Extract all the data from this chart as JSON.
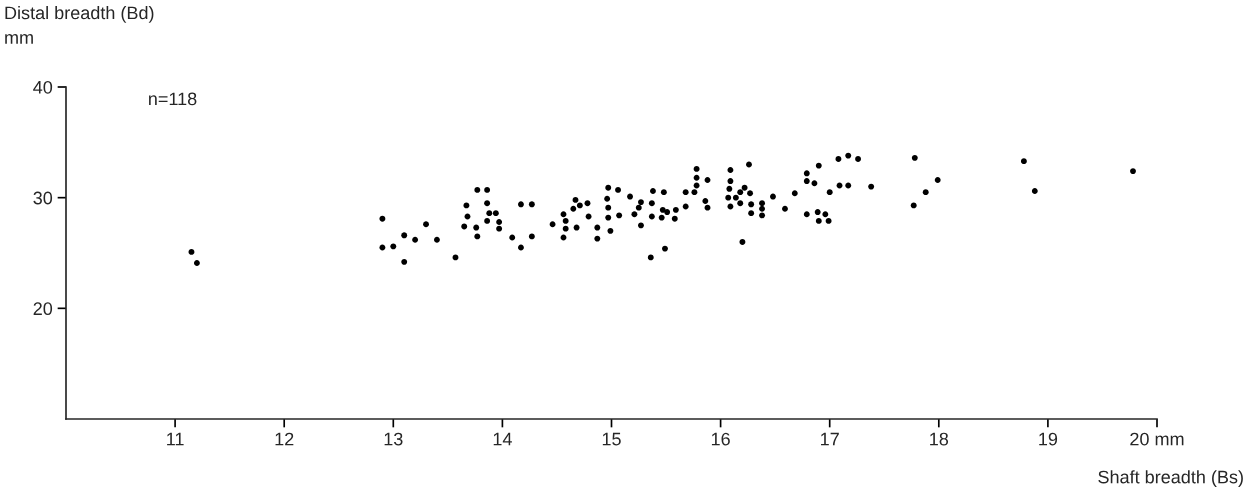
{
  "chart_data": {
    "type": "scatter",
    "ylabel": "Distal breadth (Bd)\nmm",
    "xlabel": "Shaft breadth (Bs)",
    "annotations": [
      "n=118"
    ],
    "xlim": [
      10,
      20
    ],
    "ylim": [
      10,
      40
    ],
    "xticks": [
      11,
      12,
      13,
      14,
      15,
      16,
      17,
      18,
      19,
      {
        "value": 20,
        "label": "20 mm"
      }
    ],
    "yticks": [
      20,
      30,
      40
    ],
    "grid": false,
    "legend": false,
    "marker": "circle",
    "series": [
      {
        "color": "#000000",
        "x": [
          11.15,
          11.2,
          12.9,
          12.9,
          13.0,
          13.1,
          13.1,
          13.2,
          13.3,
          13.4,
          13.57,
          13.77,
          13.86,
          13.67,
          13.86,
          13.68,
          13.88,
          13.94,
          13.65,
          13.76,
          13.86,
          13.97,
          13.97,
          13.77,
          14.09,
          14.17,
          14.17,
          14.27,
          14.27,
          14.46,
          14.56,
          14.58,
          14.58,
          14.56,
          14.67,
          14.65,
          14.71,
          14.78,
          14.79,
          14.68,
          14.87,
          14.87,
          14.97,
          14.96,
          14.97,
          14.97,
          14.99,
          15.06,
          15.07,
          15.17,
          15.27,
          15.25,
          15.21,
          15.27,
          15.38,
          15.37,
          15.37,
          15.36,
          15.48,
          15.47,
          15.46,
          15.51,
          15.49,
          15.59,
          15.58,
          15.68,
          15.68,
          15.78,
          15.78,
          15.78,
          15.76,
          15.88,
          15.86,
          15.88,
          16.09,
          16.09,
          16.08,
          16.07,
          16.09,
          16.14,
          16.18,
          16.22,
          16.18,
          16.26,
          16.27,
          16.28,
          16.28,
          16.2,
          16.38,
          16.38,
          16.38,
          16.48,
          16.59,
          16.68,
          16.79,
          16.79,
          16.9,
          16.86,
          17.0,
          16.79,
          16.89,
          16.96,
          16.9,
          16.99,
          17.08,
          17.17,
          17.26,
          17.09,
          17.17,
          17.38,
          17.78,
          17.77,
          17.88,
          17.99,
          18.78,
          18.88,
          19.78
        ],
        "values": [
          25.1,
          24.1,
          28.1,
          25.5,
          25.6,
          26.6,
          24.2,
          26.2,
          27.6,
          26.2,
          24.6,
          30.7,
          30.7,
          29.3,
          29.5,
          28.3,
          28.6,
          28.6,
          27.4,
          27.3,
          27.9,
          27.8,
          27.2,
          26.5,
          26.4,
          25.5,
          29.4,
          29.4,
          26.5,
          27.6,
          28.5,
          27.9,
          27.2,
          26.4,
          29.8,
          29.0,
          29.3,
          29.5,
          28.3,
          27.3,
          27.3,
          26.3,
          30.9,
          29.9,
          29.1,
          28.2,
          27.0,
          30.7,
          28.4,
          30.1,
          29.6,
          29.1,
          28.5,
          27.5,
          30.6,
          29.5,
          28.3,
          24.6,
          30.5,
          28.9,
          28.2,
          28.7,
          25.4,
          28.9,
          28.1,
          30.5,
          29.2,
          32.6,
          31.8,
          31.1,
          30.5,
          31.6,
          29.7,
          29.1,
          32.5,
          31.5,
          30.8,
          30.0,
          29.2,
          30.0,
          30.5,
          30.9,
          29.5,
          33.0,
          30.4,
          29.4,
          28.6,
          26.0,
          29.5,
          29.0,
          28.4,
          30.1,
          29.0,
          30.4,
          32.2,
          31.5,
          32.9,
          31.3,
          30.5,
          28.5,
          28.7,
          28.5,
          27.9,
          27.9,
          33.5,
          33.8,
          33.5,
          31.1,
          31.1,
          31.0,
          33.6,
          29.3,
          30.5,
          31.6,
          33.3,
          30.6,
          32.4
        ]
      }
    ]
  }
}
